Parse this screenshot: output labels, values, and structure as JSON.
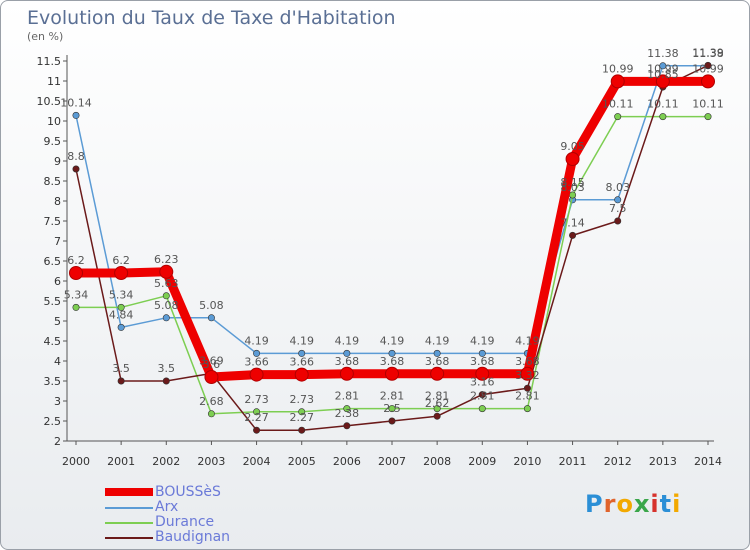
{
  "title": "Evolution du Taux de Taxe d'Habitation",
  "unit_label": "(en %)",
  "logo_text": "Proxiti",
  "chart_data": {
    "type": "line",
    "x": [
      2000,
      2001,
      2002,
      2003,
      2004,
      2005,
      2006,
      2007,
      2008,
      2009,
      2010,
      2011,
      2012,
      2013,
      2014
    ],
    "ylim": [
      2,
      11.5
    ],
    "yticks": [
      2,
      2.5,
      3,
      3.5,
      4,
      4.5,
      5,
      5.5,
      6,
      6.5,
      7,
      7.5,
      8,
      8.5,
      9,
      9.5,
      10,
      10.5,
      11,
      11.5
    ],
    "ytick_labels": [
      "2",
      "2.5",
      "3",
      "3.5",
      "4",
      "4.5",
      "5",
      "5.5",
      "6",
      "6.5",
      "7",
      "7.5",
      "8",
      "8.5",
      "9",
      "9.5",
      "10",
      "10.5",
      "11",
      "11.5"
    ],
    "grid": false,
    "legend_position": "bottom-left",
    "series": [
      {
        "name": "BOUSSèS",
        "color": "#ee0000",
        "values": [
          6.2,
          6.2,
          6.23,
          3.6,
          3.66,
          3.66,
          3.68,
          3.68,
          3.68,
          3.68,
          3.68,
          9.05,
          10.99,
          10.99,
          10.99
        ],
        "labels": [
          "6.2",
          "6.2",
          "6.23",
          "3.6",
          "3.66",
          "3.66",
          "3.68",
          "3.68",
          "3.68",
          "3.68",
          "3.68",
          "9.05",
          "10.99",
          "10.99",
          "10.99"
        ]
      },
      {
        "name": "Arx",
        "color": "#5b9bd5",
        "values": [
          10.14,
          4.84,
          5.08,
          5.08,
          4.19,
          4.19,
          4.19,
          4.19,
          4.19,
          4.19,
          4.19,
          8.03,
          8.03,
          11.38,
          11.38
        ],
        "labels": [
          "10.14",
          "4.84",
          "5.08",
          "5.08",
          "4.19",
          "4.19",
          "4.19",
          "4.19",
          "4.19",
          "4.19",
          "4.19",
          "8.03",
          "8.03",
          "11.38",
          "11.38"
        ]
      },
      {
        "name": "Durance",
        "color": "#7dce52",
        "values": [
          5.34,
          5.34,
          5.63,
          2.68,
          2.73,
          2.73,
          2.81,
          2.81,
          2.81,
          2.81,
          2.81,
          8.15,
          10.11,
          10.11,
          10.11
        ],
        "labels": [
          "5.34",
          "5.34",
          "5.63",
          "2.68",
          "2.73",
          "2.73",
          "2.81",
          "2.81",
          "2.81",
          "2.81",
          "2.81",
          "8.15",
          "10.11",
          "10.11",
          "10.11"
        ]
      },
      {
        "name": "Baudignan",
        "color": "#6b1a1a",
        "values": [
          8.8,
          3.5,
          3.5,
          3.69,
          2.27,
          2.27,
          2.38,
          2.5,
          2.62,
          3.16,
          3.32,
          7.14,
          7.5,
          10.85,
          11.39
        ],
        "labels": [
          "8.8",
          "3.5",
          "3.5",
          "3.69",
          "2.27",
          "2.27",
          "2.38",
          "2.5",
          "2.62",
          "3.16",
          "3.32",
          "7.14",
          "7.5",
          "10.85",
          "11.39"
        ]
      }
    ]
  }
}
